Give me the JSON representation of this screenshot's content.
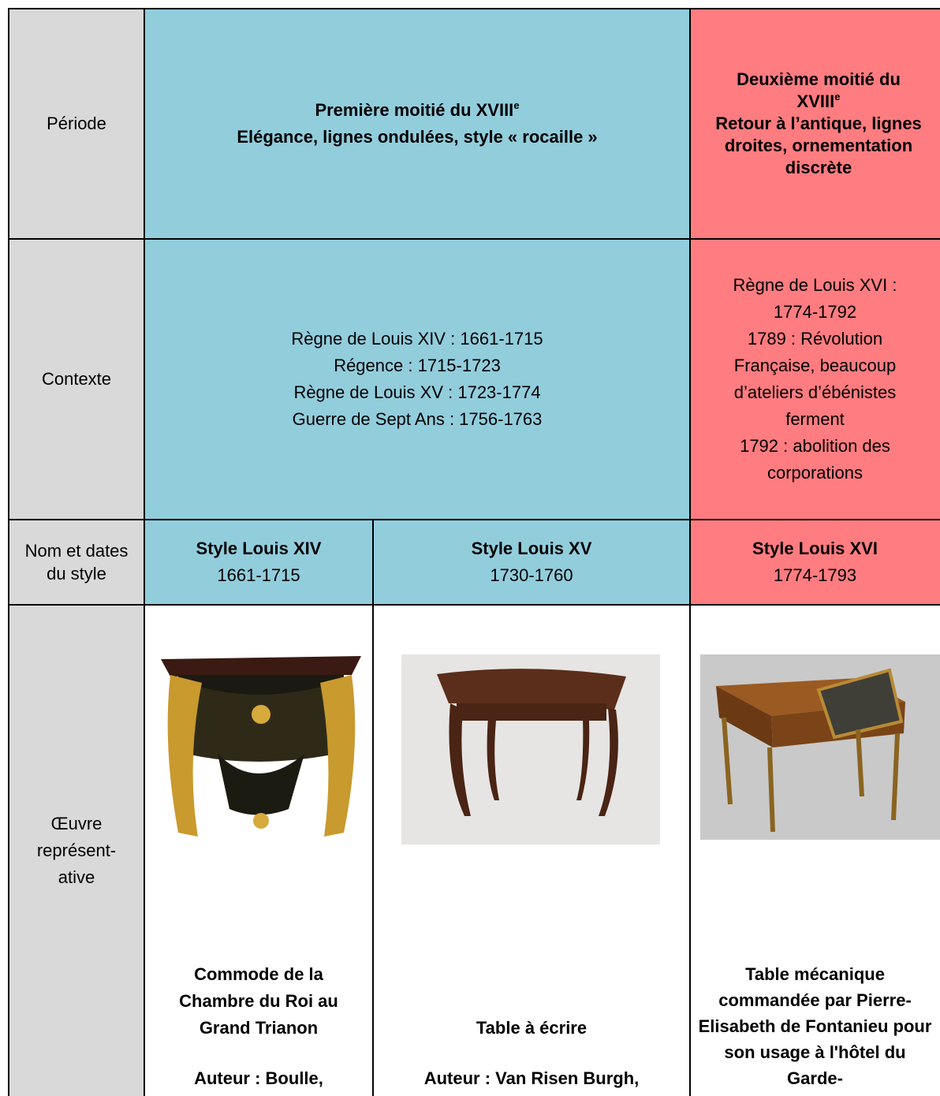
{
  "table": {
    "rows": [
      {
        "header": "Période",
        "early": {
          "title": "Première moitié du XVIII",
          "sup": "e",
          "subtitle": "Elégance, lignes ondulées, style « rocaille »"
        },
        "late": {
          "title": "Deuxième moitié du XVIII",
          "sup": "e",
          "subtitle": "Retour à l’antique, lignes droites, ornementation discrète"
        }
      },
      {
        "header": "Contexte",
        "early": [
          "Règne de Louis XIV : 1661-1715",
          "Régence : 1715-1723",
          "Règne de Louis XV : 1723-1774",
          "Guerre de Sept Ans : 1756-1763"
        ],
        "late": [
          "Règne de Louis XVI : 1774-1792",
          "1789 : Révolution Française, beaucoup d’ateliers d’ébénistes ferment",
          "1792 : abolition des corporations"
        ]
      },
      {
        "header": "Nom et dates du style",
        "cells": [
          {
            "name": "Style Louis XIV",
            "dates": "1661-1715"
          },
          {
            "name": "Style Louis XV",
            "dates": "1730-1760"
          },
          {
            "name": "Style Louis XVI",
            "dates": "1774-1793"
          }
        ]
      },
      {
        "header": [
          "Œuvre",
          "représent-",
          "ative"
        ],
        "cells": [
          {
            "title": "Commode de la Chambre du Roi au Grand Trianon",
            "author": "Auteur : Boulle,"
          },
          {
            "title": "Table à écrire",
            "author": "Auteur : Van Risen Burgh,"
          },
          {
            "title": "Table mécanique commandée par Pierre-Elisabeth de Fontanieu pour son usage à l'hôtel du Garde-"
          }
        ]
      }
    ]
  }
}
